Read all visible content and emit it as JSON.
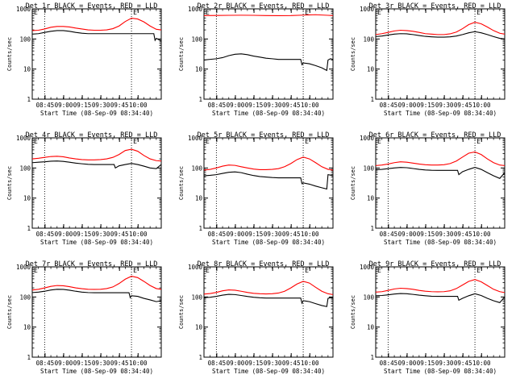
{
  "figure": {
    "y_axis_label": "Counts/sec",
    "x_axis_label": "Start Time (08-Sep-09 08:34:40)",
    "x_tick_labels": [
      "08:45",
      "09:00",
      "09:15",
      "09:30",
      "09:45",
      "10:00"
    ],
    "y_tick_labels": [
      "1",
      "10",
      "100",
      "1000"
    ],
    "marker_glyph": "E",
    "colors": {
      "events": "#000000",
      "lld": "#ff0000",
      "axes": "#000000",
      "background": "#ffffff"
    }
  },
  "chart_data": [
    {
      "type": "line",
      "title": "Det 1r BLACK = Events, RED = LLD",
      "x_unit": "minutes after 08:34:40",
      "xlim": [
        0,
        104
      ],
      "ylim": [
        1,
        1000
      ],
      "yscale": "log",
      "vlines": [
        10,
        80
      ],
      "marker_at": 80,
      "series": [
        {
          "name": "Events",
          "x": [
            0,
            5,
            10,
            15,
            20,
            25,
            30,
            35,
            40,
            45,
            50,
            55,
            60,
            65,
            70,
            75,
            80,
            85,
            90,
            95,
            98,
            99,
            100,
            102,
            104
          ],
          "y": [
            145,
            150,
            165,
            180,
            190,
            190,
            180,
            165,
            155,
            150,
            150,
            150,
            150,
            150,
            150,
            150,
            150,
            150,
            150,
            150,
            150,
            90,
            105,
            95,
            85
          ]
        },
        {
          "name": "LLD",
          "x": [
            0,
            5,
            10,
            15,
            20,
            25,
            30,
            35,
            40,
            45,
            50,
            55,
            60,
            65,
            70,
            75,
            80,
            85,
            90,
            95,
            100,
            104
          ],
          "y": [
            190,
            195,
            215,
            245,
            260,
            260,
            250,
            230,
            215,
            200,
            195,
            195,
            200,
            220,
            270,
            380,
            490,
            460,
            370,
            270,
            210,
            200
          ]
        }
      ]
    },
    {
      "type": "line",
      "title": "Det 2r BLACK = Events, RED = LLD",
      "x_unit": "minutes after 08:34:40",
      "xlim": [
        0,
        104
      ],
      "ylim": [
        1,
        1000
      ],
      "yscale": "log",
      "vlines": [
        10,
        80
      ],
      "marker_at": 80,
      "series": [
        {
          "name": "Events",
          "x": [
            0,
            5,
            10,
            15,
            20,
            25,
            30,
            35,
            40,
            45,
            50,
            55,
            60,
            65,
            70,
            75,
            78,
            79,
            80,
            85,
            90,
            95,
            99,
            100,
            102,
            104
          ],
          "y": [
            20,
            21,
            22,
            24,
            28,
            31,
            32,
            30,
            27,
            25,
            23,
            22,
            21,
            21,
            21,
            21,
            21,
            14,
            16,
            15,
            13,
            11,
            9,
            20,
            22,
            21
          ]
        },
        {
          "name": "LLD",
          "x": [
            0,
            10,
            20,
            30,
            40,
            50,
            60,
            70,
            80,
            90,
            100,
            104
          ],
          "y": [
            600,
            605,
            610,
            615,
            610,
            600,
            595,
            600,
            620,
            640,
            610,
            600
          ]
        }
      ]
    },
    {
      "type": "line",
      "title": "Det 3r BLACK = Events, RED = LLD",
      "x_unit": "minutes after 08:34:40",
      "xlim": [
        0,
        104
      ],
      "ylim": [
        1,
        1000
      ],
      "yscale": "log",
      "vlines": [
        10,
        80
      ],
      "marker_at": 80,
      "series": [
        {
          "name": "Events",
          "x": [
            0,
            5,
            10,
            15,
            20,
            25,
            30,
            35,
            40,
            45,
            50,
            55,
            60,
            65,
            70,
            75,
            80,
            85,
            90,
            95,
            100,
            104
          ],
          "y": [
            120,
            125,
            135,
            145,
            150,
            148,
            140,
            130,
            122,
            118,
            115,
            115,
            118,
            125,
            140,
            160,
            175,
            160,
            140,
            120,
            105,
            100
          ]
        },
        {
          "name": "LLD",
          "x": [
            0,
            5,
            10,
            15,
            20,
            25,
            30,
            35,
            40,
            45,
            50,
            55,
            60,
            65,
            70,
            75,
            80,
            85,
            90,
            95,
            100,
            104
          ],
          "y": [
            140,
            150,
            165,
            185,
            195,
            190,
            180,
            165,
            150,
            145,
            140,
            140,
            148,
            170,
            220,
            300,
            360,
            320,
            250,
            190,
            155,
            145
          ]
        }
      ]
    },
    {
      "type": "line",
      "title": "Det 4r BLACK = Events, RED = LLD",
      "x_unit": "minutes after 08:34:40",
      "xlim": [
        0,
        104
      ],
      "ylim": [
        1,
        1000
      ],
      "yscale": "log",
      "vlines": [
        10,
        80
      ],
      "marker_at": 80,
      "series": [
        {
          "name": "Events",
          "x": [
            0,
            5,
            10,
            15,
            20,
            25,
            30,
            35,
            40,
            45,
            50,
            55,
            60,
            65,
            66,
            67,
            70,
            75,
            80,
            85,
            90,
            95,
            100,
            104
          ],
          "y": [
            150,
            155,
            160,
            168,
            170,
            165,
            155,
            145,
            138,
            132,
            130,
            130,
            130,
            130,
            130,
            100,
            118,
            130,
            142,
            130,
            115,
            100,
            95,
            130
          ]
        },
        {
          "name": "LLD",
          "x": [
            0,
            5,
            10,
            15,
            20,
            25,
            30,
            35,
            40,
            45,
            50,
            55,
            60,
            65,
            70,
            75,
            80,
            85,
            90,
            95,
            100,
            104
          ],
          "y": [
            200,
            210,
            225,
            240,
            245,
            235,
            215,
            200,
            190,
            185,
            185,
            190,
            200,
            225,
            280,
            380,
            420,
            360,
            260,
            200,
            175,
            170
          ]
        }
      ]
    },
    {
      "type": "line",
      "title": "Det 5r BLACK = Events, RED = LLD",
      "x_unit": "minutes after 08:34:40",
      "xlim": [
        0,
        104
      ],
      "ylim": [
        1,
        1000
      ],
      "yscale": "log",
      "vlines": [
        10,
        80
      ],
      "marker_at": 80,
      "series": [
        {
          "name": "Events",
          "x": [
            0,
            5,
            10,
            15,
            20,
            25,
            30,
            35,
            40,
            45,
            50,
            55,
            60,
            65,
            70,
            75,
            78,
            79,
            80,
            85,
            90,
            95,
            99,
            100,
            102,
            104
          ],
          "y": [
            55,
            57,
            60,
            66,
            72,
            74,
            70,
            62,
            56,
            52,
            50,
            48,
            47,
            47,
            47,
            47,
            47,
            30,
            32,
            29,
            25,
            22,
            20,
            60,
            58,
            55
          ]
        },
        {
          "name": "LLD",
          "x": [
            0,
            5,
            10,
            15,
            20,
            25,
            30,
            35,
            40,
            45,
            50,
            55,
            60,
            65,
            70,
            75,
            80,
            85,
            90,
            95,
            100,
            104
          ],
          "y": [
            85,
            90,
            100,
            115,
            125,
            122,
            110,
            100,
            92,
            88,
            88,
            90,
            95,
            110,
            140,
            190,
            230,
            200,
            150,
            110,
            90,
            85
          ]
        }
      ]
    },
    {
      "type": "line",
      "title": "Det 6r BLACK = Events, RED = LLD",
      "x_unit": "minutes after 08:34:40",
      "xlim": [
        0,
        104
      ],
      "ylim": [
        1,
        1000
      ],
      "yscale": "log",
      "vlines": [
        10,
        80
      ],
      "marker_at": 80,
      "series": [
        {
          "name": "Events",
          "x": [
            0,
            5,
            10,
            15,
            20,
            25,
            30,
            35,
            40,
            45,
            50,
            55,
            60,
            65,
            66,
            67,
            70,
            75,
            80,
            85,
            90,
            95,
            100,
            104
          ],
          "y": [
            88,
            90,
            95,
            100,
            104,
            102,
            96,
            90,
            86,
            84,
            83,
            83,
            83,
            83,
            83,
            60,
            75,
            90,
            105,
            90,
            70,
            55,
            45,
            70
          ]
        },
        {
          "name": "LLD",
          "x": [
            0,
            5,
            10,
            15,
            20,
            25,
            30,
            35,
            40,
            45,
            50,
            55,
            60,
            65,
            70,
            75,
            80,
            85,
            90,
            95,
            100,
            104
          ],
          "y": [
            120,
            125,
            135,
            150,
            160,
            155,
            145,
            135,
            128,
            125,
            125,
            128,
            140,
            170,
            230,
            310,
            340,
            280,
            200,
            150,
            125,
            120
          ]
        }
      ]
    },
    {
      "type": "line",
      "title": "Det 7r BLACK = Events, RED = LLD",
      "x_unit": "minutes after 08:34:40",
      "xlim": [
        0,
        104
      ],
      "ylim": [
        1,
        1000
      ],
      "yscale": "log",
      "vlines": [
        10,
        80
      ],
      "marker_at": 80,
      "series": [
        {
          "name": "Events",
          "x": [
            0,
            5,
            10,
            15,
            20,
            25,
            30,
            35,
            40,
            45,
            50,
            55,
            60,
            65,
            70,
            75,
            78,
            79,
            80,
            85,
            90,
            95,
            100,
            104
          ],
          "y": [
            140,
            145,
            155,
            170,
            180,
            178,
            168,
            155,
            145,
            140,
            138,
            138,
            138,
            138,
            138,
            138,
            138,
            95,
            110,
            105,
            90,
            80,
            70,
            75
          ]
        },
        {
          "name": "LLD",
          "x": [
            0,
            5,
            10,
            15,
            20,
            25,
            30,
            35,
            40,
            45,
            50,
            55,
            60,
            65,
            70,
            75,
            80,
            85,
            90,
            95,
            100,
            104
          ],
          "y": [
            170,
            180,
            200,
            225,
            240,
            235,
            220,
            200,
            188,
            180,
            178,
            180,
            190,
            215,
            280,
            390,
            490,
            440,
            330,
            240,
            190,
            180
          ]
        }
      ]
    },
    {
      "type": "line",
      "title": "Det 8r BLACK = Events, RED = LLD",
      "x_unit": "minutes after 08:34:40",
      "xlim": [
        0,
        104
      ],
      "ylim": [
        1,
        1000
      ],
      "yscale": "log",
      "vlines": [
        10,
        80
      ],
      "marker_at": 80,
      "series": [
        {
          "name": "Events",
          "x": [
            0,
            5,
            10,
            15,
            20,
            25,
            30,
            35,
            40,
            45,
            50,
            55,
            60,
            65,
            70,
            75,
            78,
            79,
            80,
            85,
            90,
            95,
            99,
            100,
            102,
            104
          ],
          "y": [
            95,
            98,
            105,
            115,
            122,
            120,
            112,
            104,
            98,
            94,
            92,
            92,
            92,
            92,
            92,
            92,
            92,
            62,
            75,
            70,
            60,
            52,
            48,
            90,
            95,
            92
          ]
        },
        {
          "name": "LLD",
          "x": [
            0,
            5,
            10,
            15,
            20,
            25,
            30,
            35,
            40,
            45,
            50,
            55,
            60,
            65,
            70,
            75,
            80,
            85,
            90,
            95,
            100,
            104
          ],
          "y": [
            125,
            130,
            142,
            160,
            172,
            168,
            155,
            142,
            132,
            128,
            126,
            128,
            135,
            155,
            200,
            270,
            330,
            290,
            210,
            155,
            128,
            120
          ]
        }
      ]
    },
    {
      "type": "line",
      "title": "Det 9r BLACK = Events, RED = LLD",
      "x_unit": "minutes after 08:34:40",
      "xlim": [
        0,
        104
      ],
      "ylim": [
        1,
        1000
      ],
      "yscale": "log",
      "vlines": [
        10,
        80
      ],
      "marker_at": 80,
      "series": [
        {
          "name": "Events",
          "x": [
            0,
            5,
            10,
            15,
            20,
            25,
            30,
            35,
            40,
            45,
            50,
            55,
            60,
            65,
            66,
            67,
            70,
            75,
            80,
            85,
            90,
            95,
            100,
            104
          ],
          "y": [
            110,
            112,
            118,
            125,
            130,
            128,
            122,
            115,
            110,
            106,
            105,
            105,
            105,
            105,
            105,
            78,
            90,
            110,
            128,
            112,
            90,
            75,
            65,
            100
          ]
        },
        {
          "name": "LLD",
          "x": [
            0,
            5,
            10,
            15,
            20,
            25,
            30,
            35,
            40,
            45,
            50,
            55,
            60,
            65,
            70,
            75,
            80,
            85,
            90,
            95,
            100,
            104
          ],
          "y": [
            145,
            150,
            165,
            185,
            195,
            190,
            180,
            165,
            155,
            150,
            148,
            150,
            160,
            190,
            250,
            330,
            380,
            320,
            240,
            180,
            150,
            140
          ]
        }
      ]
    }
  ]
}
